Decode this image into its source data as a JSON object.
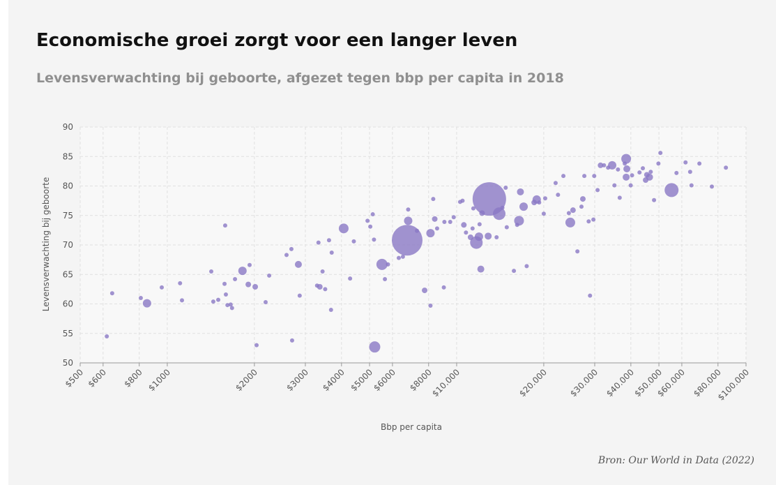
{
  "chart_data": {
    "type": "scatter",
    "title": "Economische groei zorgt voor een langer leven",
    "subtitle": "Levensverwachting bij geboorte, afgezet tegen bbp per capita in 2018",
    "xlabel": "Bbp per capita",
    "ylabel": "Levensverwachting bij geboorte",
    "source": "Bron: Our World in Data (2022)",
    "color": "#8a78c4",
    "xscale": "log",
    "grid": true,
    "xlim": [
      500,
      100000
    ],
    "ylim": [
      50,
      90
    ],
    "yticks": [
      50,
      55,
      60,
      65,
      70,
      75,
      80,
      85,
      90
    ],
    "xticks": [
      {
        "value": 500,
        "label": "$500"
      },
      {
        "value": 600,
        "label": "$600"
      },
      {
        "value": 800,
        "label": "$800"
      },
      {
        "value": 1000,
        "label": "$1000"
      },
      {
        "value": 2000,
        "label": "$2000"
      },
      {
        "value": 3000,
        "label": "$3000"
      },
      {
        "value": 4000,
        "label": "$4000"
      },
      {
        "value": 5000,
        "label": "$5000"
      },
      {
        "value": 6000,
        "label": "$6000"
      },
      {
        "value": 8000,
        "label": "$8000"
      },
      {
        "value": 10000,
        "label": "$10.000"
      },
      {
        "value": 20000,
        "label": "$20.000"
      },
      {
        "value": 30000,
        "label": "$30.000"
      },
      {
        "value": 40000,
        "label": "$40.000"
      },
      {
        "value": 50000,
        "label": "$50.000"
      },
      {
        "value": 60000,
        "label": "$60.000"
      },
      {
        "value": 80000,
        "label": "$80.000"
      },
      {
        "value": 100000,
        "label": "$100.000"
      }
    ],
    "x": [
      618,
      645,
      810,
      851,
      957,
      1107,
      1124,
      1419,
      1442,
      1500,
      1585,
      1577,
      1594,
      1614,
      1656,
      1674,
      1714,
      1819,
      1905,
      1925,
      2013,
      2035,
      2187,
      2250,
      2583,
      2685,
      2700,
      2838,
      2868,
      3293,
      3330,
      3366,
      3440,
      3513,
      3622,
      3680,
      3700,
      4070,
      4283,
      4412,
      4920,
      5030,
      5130,
      5180,
      5210,
      5520,
      5650,
      5790,
      6310,
      6520,
      6745,
      6800,
      6800,
      7290,
      7750,
      8120,
      8120,
      8300,
      8400,
      8560,
      9070,
      9030,
      9500,
      9770,
      10280,
      10480,
      10590,
      10770,
      11170,
      11350,
      11420,
      11700,
      11940,
      12000,
      12120,
      12240,
      12970,
      12850,
      13740,
      14030,
      14390,
      14770,
      14900,
      15770,
      16180,
      16430,
      16610,
      17040,
      17460,
      18530,
      18910,
      19280,
      20000,
      20230,
      21980,
      22400,
      23380,
      24420,
      24700,
      25240,
      26140,
      27000,
      27300,
      27620,
      28590,
      28900,
      29690,
      29880,
      30690,
      31420,
      32300,
      33370,
      34470,
      35100,
      36100,
      36600,
      38530,
      38530,
      38740,
      38100,
      39950,
      40380,
      42850,
      44000,
      44990,
      45440,
      46400,
      46850,
      48100,
      49800,
      50600,
      55300,
      57500,
      61800,
      64100,
      64800,
      69000,
      76200,
      85200
    ],
    "y": [
      54.5,
      61.8,
      61.0,
      60.1,
      62.8,
      63.5,
      60.6,
      65.5,
      60.4,
      60.7,
      73.3,
      63.4,
      61.6,
      59.8,
      59.9,
      59.3,
      64.2,
      65.6,
      63.3,
      66.6,
      62.9,
      53.0,
      60.3,
      64.8,
      68.3,
      69.3,
      53.8,
      66.7,
      61.4,
      63.1,
      70.4,
      62.9,
      65.5,
      62.5,
      70.8,
      59.0,
      68.7,
      72.8,
      64.3,
      70.6,
      74.1,
      73.1,
      75.2,
      70.9,
      52.7,
      66.7,
      64.2,
      66.7,
      67.8,
      68.0,
      70.8,
      74.1,
      76.0,
      72.4,
      62.3,
      72.0,
      59.7,
      77.8,
      74.4,
      72.8,
      73.9,
      62.8,
      73.9,
      74.7,
      77.3,
      77.5,
      73.4,
      72.1,
      71.3,
      72.8,
      76.2,
      70.4,
      71.4,
      73.5,
      65.9,
      75.4,
      77.8,
      71.5,
      71.3,
      75.3,
      76.3,
      79.7,
      73.0,
      65.6,
      73.4,
      74.1,
      79.0,
      76.5,
      66.4,
      77.2,
      77.7,
      77.2,
      75.3,
      77.9,
      80.5,
      78.5,
      81.7,
      75.4,
      73.8,
      75.9,
      68.9,
      76.5,
      77.8,
      81.7,
      74.0,
      61.4,
      74.3,
      81.7,
      79.3,
      83.5,
      83.5,
      83.1,
      83.5,
      80.1,
      82.8,
      78.0,
      84.6,
      81.5,
      82.9,
      83.8,
      80.1,
      81.8,
      82.3,
      83.0,
      81.0,
      81.9,
      81.5,
      82.4,
      77.6,
      83.8,
      85.6,
      79.3,
      82.2,
      84.0,
      82.4,
      80.1,
      83.8,
      79.9,
      83.1
    ],
    "sizes": [
      3,
      3,
      3,
      6,
      3,
      3,
      3,
      3,
      3,
      3,
      3,
      3,
      3,
      3,
      3,
      3,
      3,
      6,
      4,
      3,
      4,
      3,
      3,
      3,
      3,
      3,
      3,
      5,
      3,
      3,
      3,
      4,
      3,
      3,
      3,
      3,
      3,
      7,
      3,
      3,
      3,
      3,
      3,
      3,
      8,
      8,
      3,
      3,
      3,
      3,
      22,
      6,
      3,
      3,
      4,
      6,
      3,
      3,
      4,
      3,
      3,
      3,
      3,
      3,
      3,
      3,
      4,
      3,
      4,
      3,
      3,
      9,
      6,
      3,
      5,
      4,
      24,
      5,
      3,
      9,
      3,
      3,
      3,
      3,
      3,
      7,
      5,
      6,
      3,
      4,
      6,
      3,
      3,
      3,
      3,
      3,
      3,
      3,
      7,
      4,
      3,
      3,
      4,
      3,
      3,
      3,
      3,
      3,
      3,
      4,
      3,
      3,
      6,
      3,
      3,
      3,
      7,
      5,
      5,
      3,
      3,
      3,
      3,
      3,
      4,
      4,
      5,
      3,
      3,
      3,
      3,
      10,
      3,
      3,
      3,
      3,
      3,
      3,
      3
    ]
  }
}
